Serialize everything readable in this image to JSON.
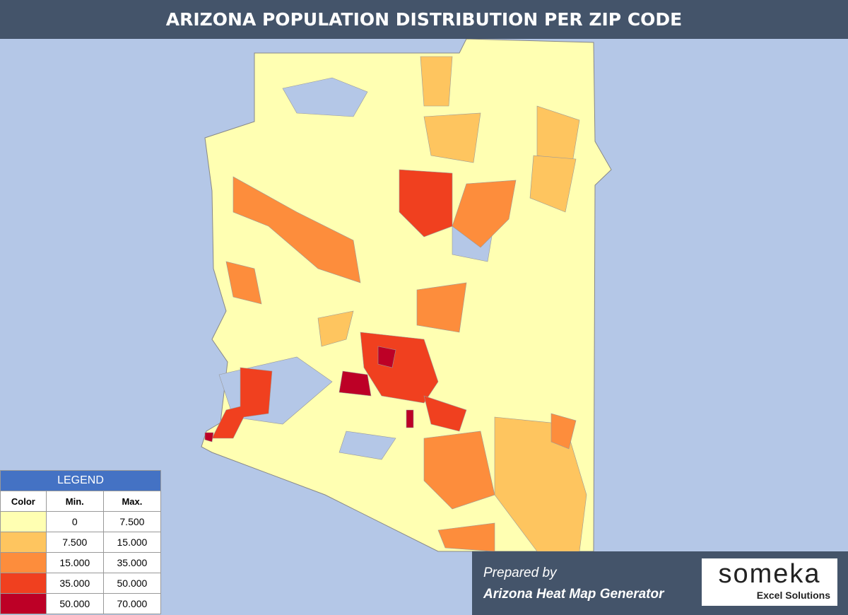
{
  "header": {
    "title": "ARIZONA POPULATION DISTRIBUTION PER ZIP CODE"
  },
  "legend": {
    "title": "LEGEND",
    "columns": [
      "Color",
      "Min.",
      "Max."
    ],
    "rows": [
      {
        "color": "#ffffb2",
        "min": "0",
        "max": "7.500"
      },
      {
        "color": "#fec55f",
        "min": "7.500",
        "max": "15.000"
      },
      {
        "color": "#fd8d3c",
        "min": "15.000",
        "max": "35.000"
      },
      {
        "color": "#f0401f",
        "min": "35.000",
        "max": "50.000"
      },
      {
        "color": "#bd0026",
        "min": "50.000",
        "max": "70.000"
      }
    ]
  },
  "footer": {
    "prepared": "Prepared by",
    "generator": "Arizona Heat Map Generator",
    "logo": "someka",
    "logo_sub": "Excel Solutions"
  }
}
